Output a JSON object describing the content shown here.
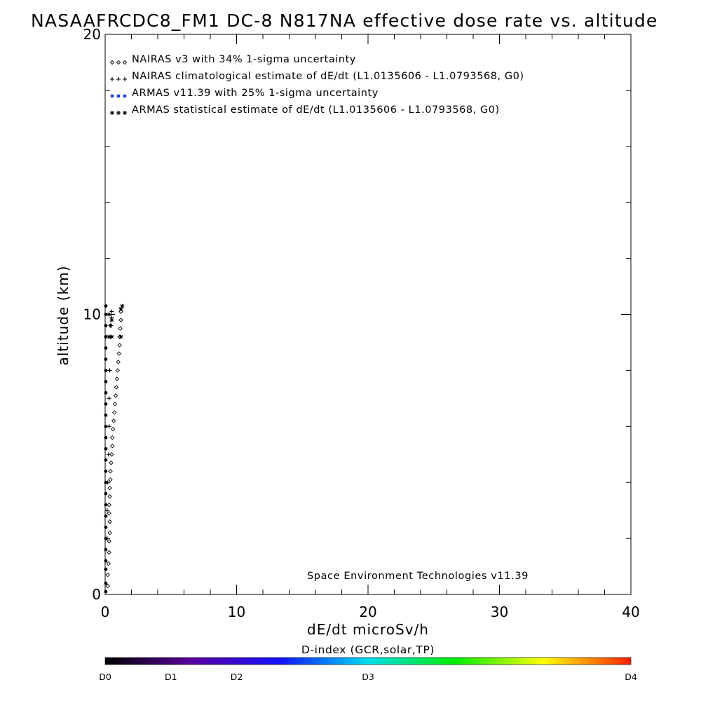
{
  "chart_data": {
    "type": "scatter",
    "title": "NASAAFRCDC8_FM1 DC-8   N817NA effective dose rate vs. altitude",
    "xlabel": "dE/dt microSv/h",
    "ylabel": "altitude (km)",
    "xlim": [
      0,
      40
    ],
    "ylim": [
      0,
      20
    ],
    "xticks": [
      "0",
      "10",
      "20",
      "30",
      "40"
    ],
    "yticks": [
      "0",
      "10",
      "20"
    ],
    "x_minor_step": 2,
    "y_minor_step": 2,
    "credit": "Space Environment Technologies v11.39",
    "legend": {
      "position": "top-left",
      "entries": [
        {
          "marker": "diamond",
          "color": "#000000",
          "label": "NAIRAS v3 with 34% 1-sigma uncertainty"
        },
        {
          "marker": "plus",
          "color": "#000000",
          "label": "NAIRAS climatological estimate of dE/dt (L1.0135606 - L1.0793568, G0)"
        },
        {
          "marker": "dot",
          "color": "#1a3fd6",
          "label": "ARMAS v11.39 with 25% 1-sigma uncertainty"
        },
        {
          "marker": "asterisk",
          "color": "#000000",
          "label": "ARMAS statistical estimate of dE/dt (L1.0135606 - L1.0793568, G0)"
        }
      ]
    },
    "series": [
      {
        "name": "NAIRAS v3 with 34% 1-sigma uncertainty",
        "marker": "diamond",
        "points": [
          [
            0.2,
            0.3
          ],
          [
            0.2,
            0.7
          ],
          [
            0.25,
            1.1
          ],
          [
            0.3,
            1.5
          ],
          [
            0.3,
            1.9
          ],
          [
            0.35,
            2.2
          ],
          [
            0.35,
            2.6
          ],
          [
            0.3,
            2.9
          ],
          [
            0.3,
            3.2
          ],
          [
            0.35,
            3.5
          ],
          [
            0.35,
            3.8
          ],
          [
            0.4,
            4.1
          ],
          [
            0.4,
            4.4
          ],
          [
            0.45,
            4.7
          ],
          [
            0.5,
            5.0
          ],
          [
            0.55,
            5.3
          ],
          [
            0.55,
            5.6
          ],
          [
            0.6,
            5.9
          ],
          [
            0.65,
            6.2
          ],
          [
            0.7,
            6.5
          ],
          [
            0.75,
            6.8
          ],
          [
            0.8,
            7.1
          ],
          [
            0.85,
            7.4
          ],
          [
            0.9,
            7.7
          ],
          [
            0.95,
            8.0
          ],
          [
            1.0,
            8.3
          ],
          [
            1.05,
            8.6
          ],
          [
            1.1,
            8.9
          ],
          [
            1.1,
            9.2
          ],
          [
            1.15,
            9.5
          ],
          [
            1.2,
            9.8
          ],
          [
            1.2,
            10.1
          ]
        ]
      },
      {
        "name": "NAIRAS climatological estimate of dE/dt (L1.0135606 - L1.0793568, G0)",
        "marker": "plus",
        "points": [
          [
            0.15,
            2.0
          ],
          [
            0.15,
            3.0
          ],
          [
            0.2,
            4.0
          ],
          [
            0.25,
            5.0
          ],
          [
            0.3,
            6.0
          ],
          [
            0.3,
            7.0
          ],
          [
            0.35,
            8.0
          ],
          [
            0.4,
            9.2
          ],
          [
            0.45,
            9.6
          ],
          [
            0.5,
            9.9
          ],
          [
            0.5,
            10.1
          ]
        ]
      },
      {
        "name": "ARMAS v11.39 with 25% 1-sigma uncertainty",
        "marker": "dot",
        "points": [
          [
            0.05,
            0.1
          ],
          [
            0.05,
            0.4
          ],
          [
            0.05,
            0.9
          ],
          [
            0.05,
            1.2
          ],
          [
            0.05,
            1.6
          ],
          [
            0.05,
            2.0
          ],
          [
            0.05,
            2.4
          ],
          [
            0.05,
            2.8
          ],
          [
            0.05,
            3.2
          ],
          [
            0.05,
            3.6
          ],
          [
            0.05,
            4.0
          ],
          [
            0.05,
            4.4
          ],
          [
            0.05,
            4.8
          ],
          [
            0.05,
            5.2
          ],
          [
            0.05,
            5.6
          ],
          [
            0.05,
            6.0
          ],
          [
            0.05,
            6.4
          ],
          [
            0.05,
            6.8
          ],
          [
            0.05,
            7.2
          ],
          [
            0.05,
            7.6
          ],
          [
            0.05,
            8.0
          ],
          [
            0.05,
            8.4
          ],
          [
            0.05,
            8.8
          ],
          [
            0.05,
            9.2
          ],
          [
            0.05,
            9.6
          ],
          [
            0.05,
            10.0
          ],
          [
            0.05,
            10.3
          ]
        ]
      },
      {
        "name": "ARMAS statistical estimate of dE/dt (L1.0135606 - L1.0793568, G0)",
        "marker": "asterisk",
        "points": [
          [
            0.3,
            9.2
          ],
          [
            0.5,
            9.2
          ],
          [
            1.2,
            9.2
          ],
          [
            0.4,
            9.6
          ],
          [
            0.5,
            9.8
          ],
          [
            1.2,
            10.2
          ],
          [
            1.3,
            10.3
          ],
          [
            0.3,
            10.0
          ]
        ]
      }
    ],
    "colorbar": {
      "title": "D-index (GCR,solar,TP)",
      "labels": [
        {
          "text": "D0",
          "value": 0
        },
        {
          "text": "D1",
          "value": 0.125
        },
        {
          "text": "D2",
          "value": 0.25
        },
        {
          "text": "D3",
          "value": 0.5
        },
        {
          "text": "D4",
          "value": 1
        }
      ],
      "colors": [
        "#000000",
        "#5a00a0",
        "#1010ff",
        "#00ddee",
        "#00ee00",
        "#ffff00",
        "#ff2000"
      ]
    }
  }
}
